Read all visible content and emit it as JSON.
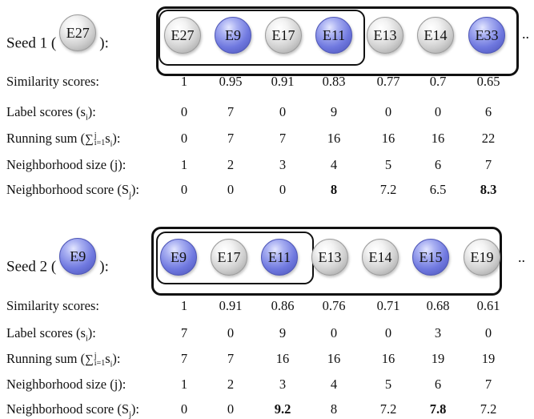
{
  "colors": {
    "highlighted": "#6f78df",
    "plain": "#cfcfcf",
    "frame": "#111111"
  },
  "seeds": [
    {
      "label_prefix": "Seed 1 (",
      "label_suffix": "):",
      "seed_node": {
        "label": "E27",
        "color": "grey"
      },
      "nodes": [
        {
          "label": "E27",
          "color": "grey"
        },
        {
          "label": "E9",
          "color": "blue"
        },
        {
          "label": "E17",
          "color": "grey"
        },
        {
          "label": "E11",
          "color": "blue"
        },
        {
          "label": "E13",
          "color": "grey"
        },
        {
          "label": "E14",
          "color": "grey"
        },
        {
          "label": "E33",
          "color": "blue"
        }
      ],
      "ellipsis": "..",
      "rows": {
        "similarity": [
          "1",
          "0.95",
          "0.91",
          "0.83",
          "0.77",
          "0.7",
          "0.65"
        ],
        "label_scores": [
          "0",
          "7",
          "0",
          "9",
          "0",
          "0",
          "6"
        ],
        "running_sum": [
          "0",
          "7",
          "7",
          "16",
          "16",
          "16",
          "22"
        ],
        "neighborhood_size": [
          "1",
          "2",
          "3",
          "4",
          "5",
          "6",
          "7"
        ],
        "neighborhood_score": [
          "0",
          "0",
          "0",
          "8",
          "7.2",
          "6.5",
          "8.3"
        ]
      },
      "bold_scores": [
        3,
        6
      ]
    },
    {
      "label_prefix": "Seed 2 (",
      "label_suffix": "):",
      "seed_node": {
        "label": "E9",
        "color": "blue"
      },
      "nodes": [
        {
          "label": "E9",
          "color": "blue"
        },
        {
          "label": "E17",
          "color": "grey"
        },
        {
          "label": "E11",
          "color": "blue"
        },
        {
          "label": "E13",
          "color": "grey"
        },
        {
          "label": "E14",
          "color": "grey"
        },
        {
          "label": "E15",
          "color": "blue"
        },
        {
          "label": "E19",
          "color": "grey"
        }
      ],
      "ellipsis": "..",
      "rows": {
        "similarity": [
          "1",
          "0.91",
          "0.86",
          "0.76",
          "0.71",
          "0.68",
          "0.61"
        ],
        "label_scores": [
          "7",
          "0",
          "9",
          "0",
          "0",
          "3",
          "0"
        ],
        "running_sum": [
          "7",
          "7",
          "16",
          "16",
          "16",
          "19",
          "19"
        ],
        "neighborhood_size": [
          "1",
          "2",
          "3",
          "4",
          "5",
          "6",
          "7"
        ],
        "neighborhood_score": [
          "0",
          "0",
          "9.2",
          "8",
          "7.2",
          "7.8",
          "7.2"
        ]
      },
      "bold_scores": [
        2,
        5
      ]
    }
  ],
  "row_labels": {
    "similarity": "Similarity scores:",
    "label_scores": {
      "text": "Label scores (s",
      "sub": "i",
      "end": "):"
    },
    "running_sum": {
      "text": "Running sum (",
      "sym": "∑",
      "sup": "j",
      "sub": "i=1",
      "var": "s",
      "varsub": "i",
      "end": "):"
    },
    "neighborhood_size": "Neighborhood size (j):",
    "neighborhood_score": {
      "text": "Neighborhood score (S",
      "sub": "j",
      "end": "): "
    }
  }
}
